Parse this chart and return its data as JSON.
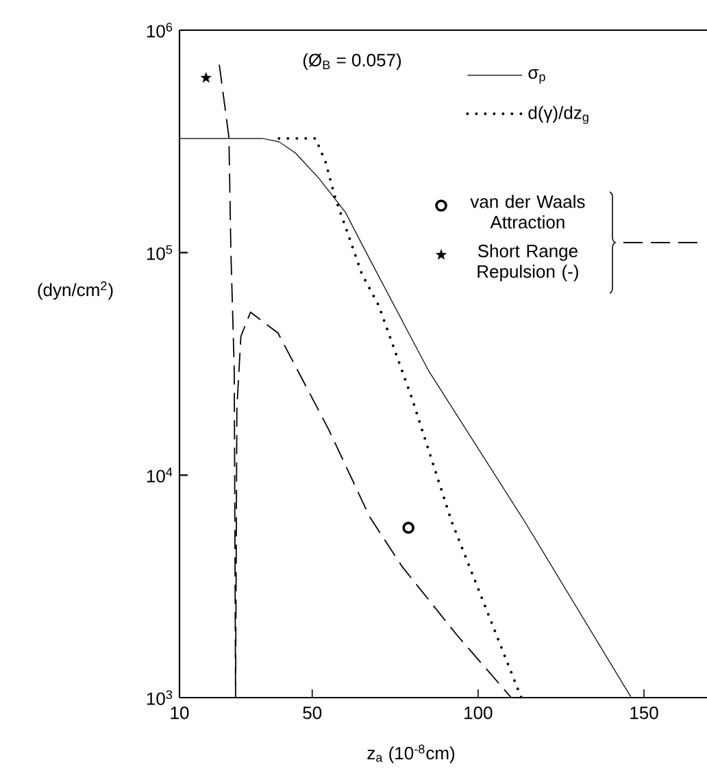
{
  "chart_data": {
    "type": "line",
    "annotations": [
      "(Ø$_{B}$ = 0.057)"
    ],
    "xlabel": "z$_{a}$  (10$^{-8}$cm)",
    "ylabel": "(dyn/cm$^{2}$)",
    "xlim": [
      10,
      169
    ],
    "ylim": [
      1000,
      1000000
    ],
    "xticks": [
      10,
      50,
      100,
      150
    ],
    "yticks": [
      {
        "value": 1000,
        "label": "10$^{3}$"
      },
      {
        "value": 10000,
        "label": "10$^{4}$"
      },
      {
        "value": 100000,
        "label": "10$^{5}$"
      },
      {
        "value": 1000000,
        "label": "10$^{6}$"
      }
    ],
    "log": "y",
    "legend": "top right",
    "series": [
      {
        "name": "σ$_{p}$",
        "line_style": "solid",
        "color": "#000000",
        "x": [
          10,
          35,
          40,
          45,
          52,
          60,
          66,
          85,
          114,
          146
        ],
        "values": [
          326000,
          326000,
          315000,
          280000,
          216000,
          152000,
          102000,
          29600,
          6200,
          1010
        ]
      },
      {
        "name": "d(γ)/dz$_{g}$",
        "line_style": "dotted",
        "color": "#000000",
        "x": [
          40,
          51,
          54,
          57,
          60,
          65,
          70,
          80,
          92,
          113
        ],
        "values": [
          326000,
          326000,
          256000,
          175000,
          131000,
          80000,
          58000,
          22300,
          6200,
          1000
        ]
      },
      {
        "line_style": "dashed",
        "color": "#000000",
        "x": [
          22,
          24.9,
          25.5,
          26.5,
          26.9,
          27.3,
          28.5,
          31.4,
          39.7,
          55,
          67.3,
          77,
          93.5,
          110
        ],
        "values": [
          700000,
          330000,
          100000,
          30000,
          1000,
          20000,
          42000,
          54000,
          43500,
          16000,
          6500,
          3900,
          1920,
          1000
        ]
      },
      {
        "name": "van der Waals Attraction",
        "type": "scatter",
        "marker": "circle",
        "color": "#000000",
        "x": [
          79
        ],
        "values": [
          5800
        ]
      },
      {
        "name": "Short Range Repulsion (-)",
        "type": "scatter",
        "marker": "star",
        "color": "#000000",
        "x": [
          18
        ],
        "values": [
          610000
        ]
      }
    ]
  }
}
